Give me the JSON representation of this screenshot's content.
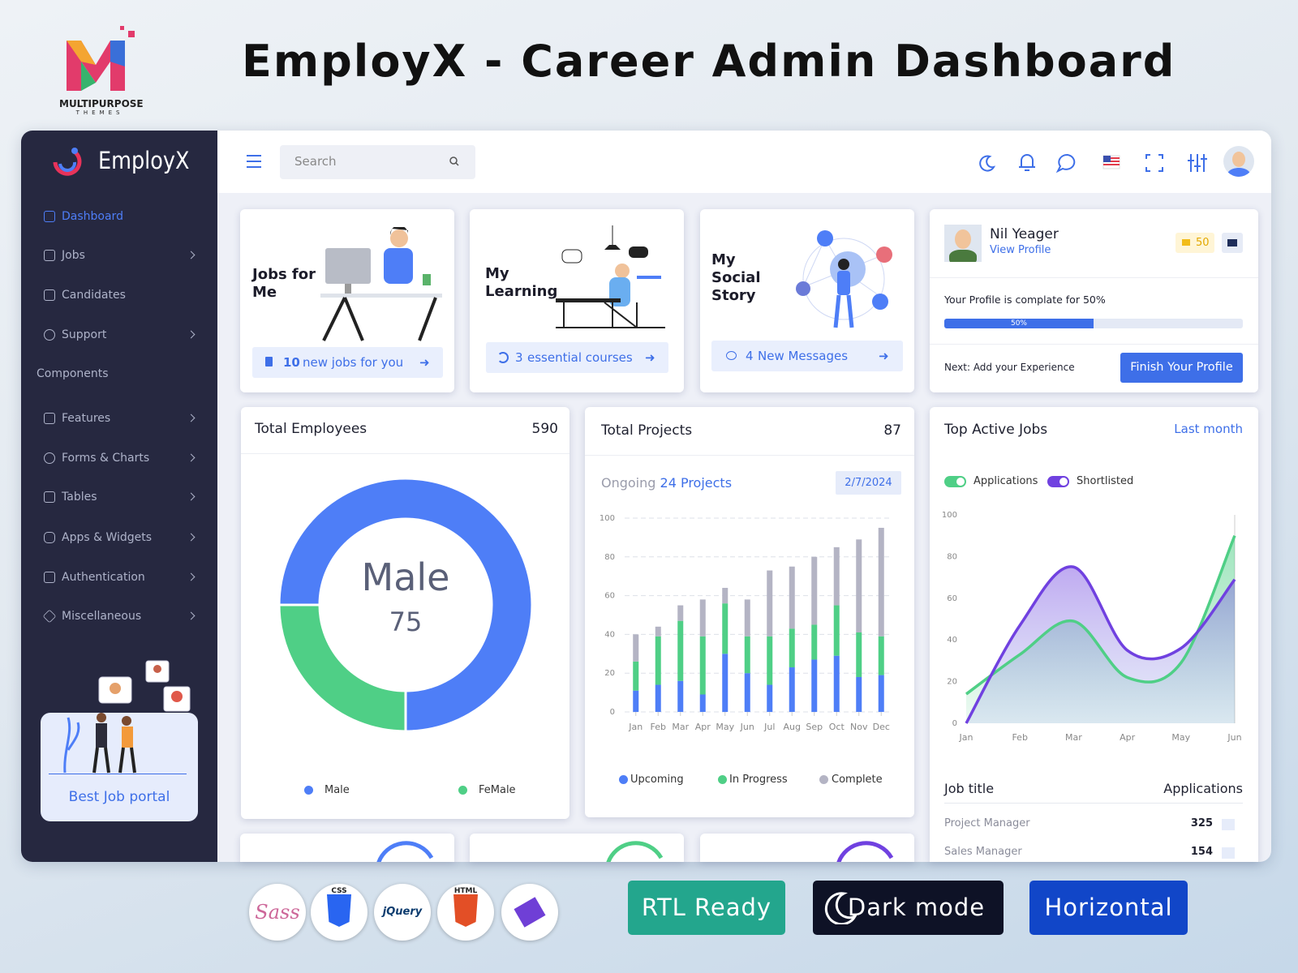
{
  "header": {
    "brand": "MULTIPURPOSE",
    "brand_sub": "THEMES",
    "title": "EmployX - Career Admin Dashboard"
  },
  "sidebar": {
    "app_name": "EmployX",
    "menu": [
      "Dashboard",
      "Jobs",
      "Candidates",
      "Support"
    ],
    "section": "Components",
    "components": [
      "Features",
      "Forms & Charts",
      "Tables",
      "Apps & Widgets",
      "Authentication",
      "Miscellaneous"
    ],
    "promo": "Best Job portal"
  },
  "topbar": {
    "search_placeholder": "Search"
  },
  "cards": [
    {
      "title": "Jobs for Me",
      "count": 10,
      "action": "new jobs for you"
    },
    {
      "title": "My Learning",
      "count": 3,
      "action": "essential courses"
    },
    {
      "title": "My Social Story",
      "count": 4,
      "action": "New Messages"
    }
  ],
  "profile": {
    "name": "Nil Yeager",
    "link": "View Profile",
    "points": 50,
    "completion_text": "Your Profile is complate for 50%",
    "progress": {
      "value": 50,
      "label": "50%"
    },
    "next": "Next: Add your Experience",
    "button": "Finish Your Profile"
  },
  "chart_data": [
    {
      "type": "donut",
      "title": "Total Employees",
      "total": 590,
      "categories": [
        "Male",
        "FeMale"
      ],
      "values": [
        75,
        25
      ],
      "colors": [
        "#4e7ef7",
        "#4fcf86"
      ]
    },
    {
      "type": "bar",
      "title": "Total Projects",
      "total": 87,
      "subtitle": "Ongoing",
      "highlight": "24 Projects",
      "date": "2/7/2024",
      "categories": [
        "Jan",
        "Feb",
        "Mar",
        "Apr",
        "May",
        "Jun",
        "Jul",
        "Aug",
        "Sep",
        "Oct",
        "Nov",
        "Dec"
      ],
      "series": [
        {
          "name": "Upcoming",
          "color": "#4e7ef7",
          "values": [
            11,
            14,
            16,
            9,
            30,
            20,
            14,
            23,
            27,
            29,
            18,
            19
          ]
        },
        {
          "name": "In Progress",
          "color": "#4fcf86",
          "values": [
            15,
            25,
            31,
            30,
            26,
            19,
            25,
            20,
            18,
            26,
            23,
            20
          ]
        },
        {
          "name": "Complete",
          "color": "#b4b4c4",
          "values": [
            14,
            5,
            8,
            19,
            8,
            19,
            34,
            32,
            35,
            30,
            48,
            56
          ]
        }
      ],
      "ylim": [
        0,
        100
      ],
      "yticks": [
        0,
        20,
        40,
        60,
        80,
        100
      ],
      "grid": true
    },
    {
      "type": "area",
      "title": "Top Active Jobs",
      "period": "Last month",
      "categories": [
        "Jan",
        "Feb",
        "Mar",
        "Apr",
        "May",
        "Jun"
      ],
      "series": [
        {
          "name": "Applications",
          "color": "#4fcf86",
          "values": [
            14,
            33,
            49,
            22,
            29,
            90
          ]
        },
        {
          "name": "Shortlisted",
          "color": "#7041e0",
          "values": [
            0,
            47,
            75,
            35,
            36,
            69
          ]
        }
      ],
      "ylim": [
        0,
        100
      ],
      "yticks": [
        0,
        20,
        40,
        60,
        80,
        100
      ],
      "grid": false
    }
  ],
  "jobs_table": {
    "headers": [
      "Job title",
      "Applications"
    ],
    "rows": [
      [
        "Project Manager",
        325
      ],
      [
        "Sales Manager",
        154
      ]
    ]
  },
  "footer": {
    "tech": [
      "Sass",
      "CSS",
      "jQuery",
      "HTML"
    ],
    "buttons": [
      "RTL Ready",
      "Dark mode",
      "Horizontal"
    ]
  }
}
